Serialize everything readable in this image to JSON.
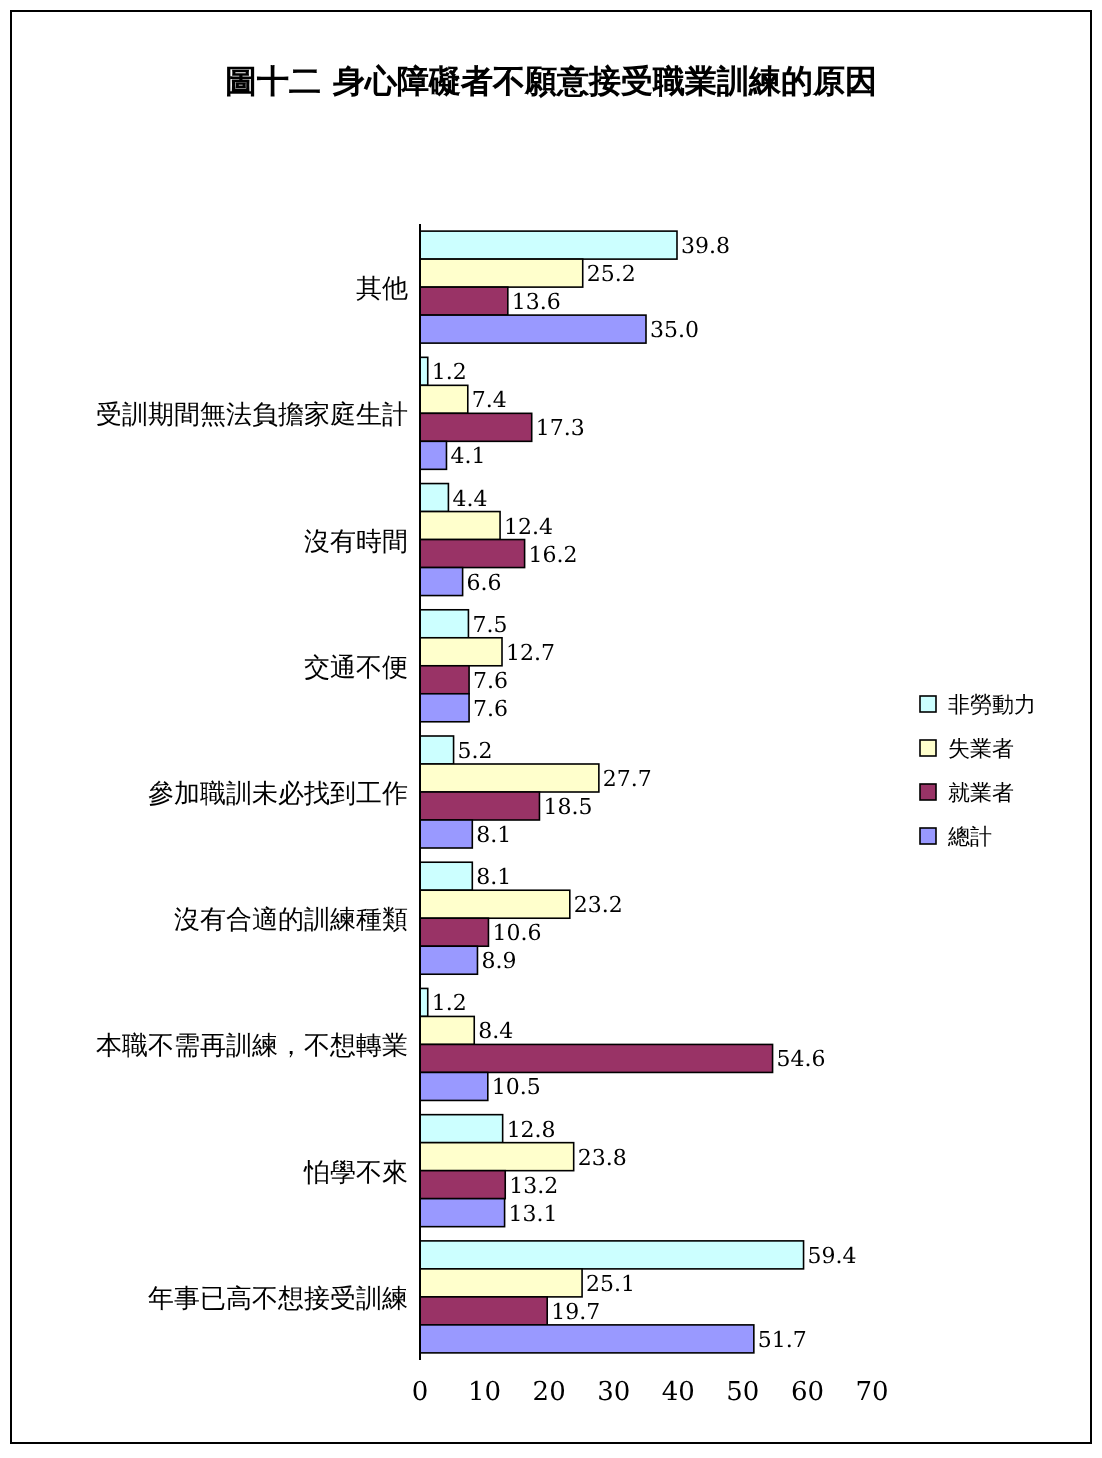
{
  "chart_data": {
    "type": "bar",
    "orientation": "horizontal",
    "title": "圖十二 身心障礙者不願意接受職業訓練的原因",
    "categories": [
      "其他",
      "受訓期間無法負擔家庭生計",
      "沒有時間",
      "交通不便",
      "參加職訓未必找到工作",
      "沒有合適的訓練種類",
      "本職不需再訓練，不想轉業",
      "怕學不來",
      "年事已高不想接受訓練"
    ],
    "series": [
      {
        "name": "非勞動力",
        "color": "#ccffff",
        "values": [
          39.8,
          1.2,
          4.4,
          7.5,
          5.2,
          8.1,
          1.2,
          12.8,
          59.4
        ]
      },
      {
        "name": "失業者",
        "color": "#ffffcc",
        "values": [
          25.2,
          7.4,
          12.4,
          12.7,
          27.7,
          23.2,
          8.4,
          23.8,
          25.1
        ]
      },
      {
        "name": "就業者",
        "color": "#993366",
        "values": [
          13.6,
          17.3,
          16.2,
          7.6,
          18.5,
          10.6,
          54.6,
          13.2,
          19.7
        ]
      },
      {
        "name": "總計",
        "color": "#9999ff",
        "values": [
          35.0,
          4.1,
          6.6,
          7.6,
          8.1,
          8.9,
          10.5,
          13.1,
          51.7
        ],
        "value_labels": [
          "35.0",
          "4.1",
          "6.6",
          "7.6",
          "8.1",
          "8.9",
          "10.5",
          "13.1",
          "51.7"
        ]
      }
    ],
    "xlim": [
      0,
      70
    ],
    "xticks": [
      0,
      10,
      20,
      30,
      40,
      50,
      60,
      70
    ],
    "grid": false,
    "legend": "right",
    "data_labels": true
  }
}
